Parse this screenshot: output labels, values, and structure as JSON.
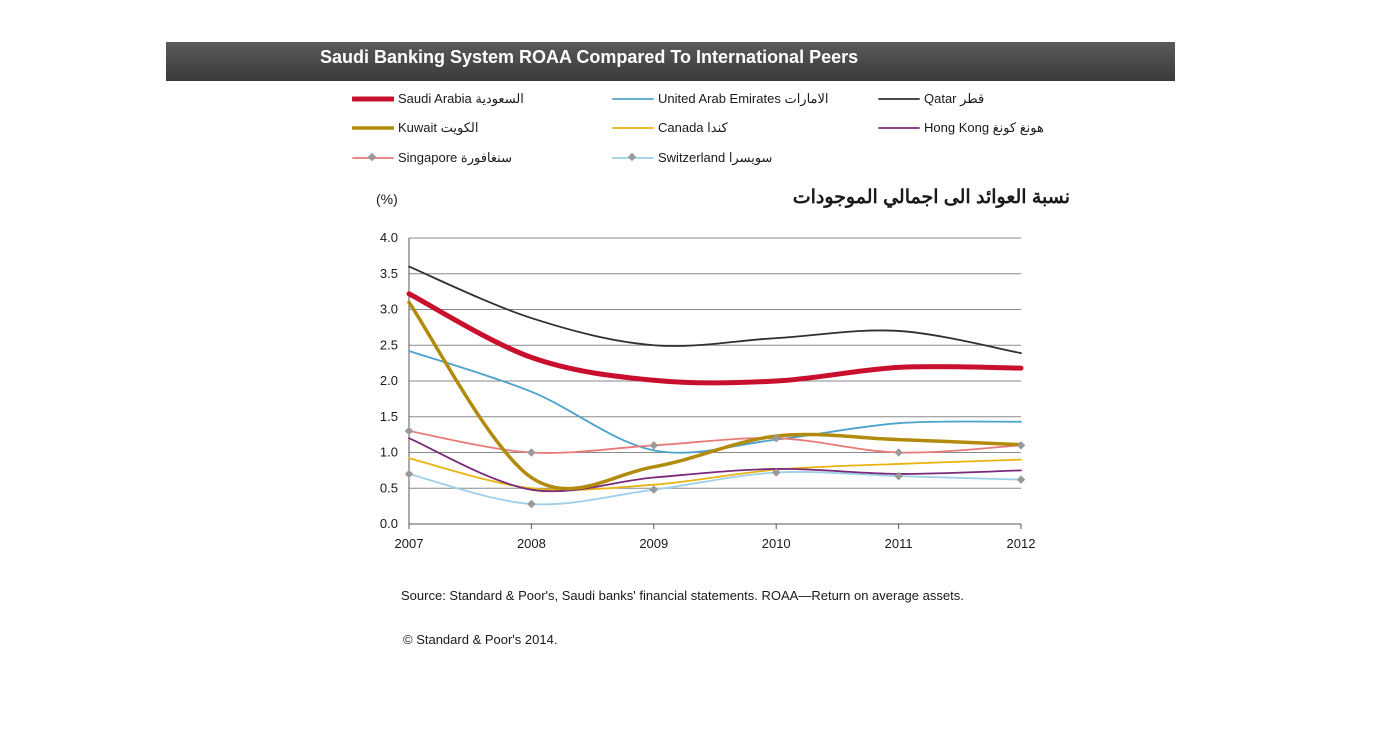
{
  "header": {
    "title": "Saudi Banking System ROAA Compared To International Peers"
  },
  "chart_data": {
    "type": "line",
    "title": "Saudi Banking System ROAA Compared To International Peers",
    "ylabel_unit": "(%)",
    "ylabel": "نسبة العوائد الى اجمالي الموجودات",
    "xlabel": "",
    "x": [
      "2007",
      "2008",
      "2009",
      "2010",
      "2011",
      "2012"
    ],
    "ylim": [
      0,
      4
    ],
    "yticks": [
      "0.0",
      "0.5",
      "1.0",
      "1.5",
      "2.0",
      "2.5",
      "3.0",
      "3.5",
      "4.0"
    ],
    "grid": "horizontal",
    "legend_position": "top",
    "series": [
      {
        "name": "Saudi Arabia السعودية",
        "color": "#c8102e",
        "width": 5,
        "marker": "none",
        "values": [
          3.22,
          2.33,
          2.01,
          2.0,
          2.19,
          2.18
        ]
      },
      {
        "name": "United Arab Emirates الامارات",
        "color": "#4ba3cc",
        "width": 1.8,
        "marker": "none",
        "values": [
          2.42,
          1.85,
          1.03,
          1.18,
          1.41,
          1.43
        ]
      },
      {
        "name": "Qatar قطر",
        "color": "#303030",
        "width": 1.8,
        "marker": "none",
        "values": [
          3.6,
          2.88,
          2.5,
          2.6,
          2.7,
          2.39
        ]
      },
      {
        "name": "Kuwait الكويت",
        "color": "#b28a0c",
        "width": 3.5,
        "marker": "none",
        "values": [
          3.1,
          0.65,
          0.8,
          1.23,
          1.18,
          1.11
        ]
      },
      {
        "name": "Canada كندا",
        "color": "#e8b40f",
        "width": 1.8,
        "marker": "none",
        "values": [
          0.92,
          0.5,
          0.55,
          0.76,
          0.84,
          0.9
        ]
      },
      {
        "name": "Hong Kong هونغ كونغ",
        "color": "#7a2a7a",
        "width": 1.8,
        "marker": "none",
        "values": [
          1.2,
          0.48,
          0.65,
          0.77,
          0.7,
          0.75
        ]
      },
      {
        "name": "Singapore سنغافورة",
        "color": "#e87a78",
        "width": 1.8,
        "marker": "diamond",
        "values": [
          1.3,
          1.0,
          1.1,
          1.2,
          1.0,
          1.1
        ]
      },
      {
        "name": "Switzerland سويسرا",
        "color": "#9fd0ea",
        "width": 1.8,
        "marker": "diamond",
        "values": [
          0.7,
          0.28,
          0.48,
          0.72,
          0.67,
          0.62
        ]
      }
    ],
    "marker_color": "#9a9a9a"
  },
  "legend": [
    {
      "label": "Saudi Arabia السعودية"
    },
    {
      "label": "United Arab Emirates الامارات"
    },
    {
      "label": "Qatar قطر"
    },
    {
      "label": "Kuwait الكويت"
    },
    {
      "label": "Canada كندا"
    },
    {
      "label": "Hong Kong هونغ كونغ"
    },
    {
      "label": "Singapore سنغافورة"
    },
    {
      "label": "Switzerland سويسرا"
    }
  ],
  "footer": {
    "source": "Source: Standard & Poor's, Saudi banks' financial statements. ROAA—Return on  average assets.",
    "copyright": "© Standard & Poor's 2014."
  }
}
